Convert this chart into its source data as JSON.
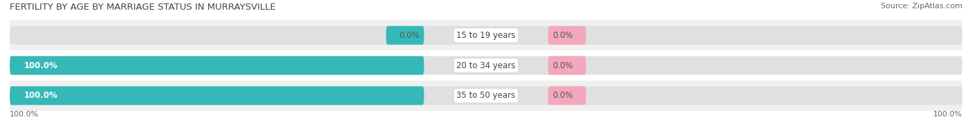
{
  "title": "FERTILITY BY AGE BY MARRIAGE STATUS IN MURRAYSVILLE",
  "source": "Source: ZipAtlas.com",
  "categories": [
    "15 to 19 years",
    "20 to 34 years",
    "35 to 50 years"
  ],
  "married_values": [
    0.0,
    100.0,
    100.0
  ],
  "unmarried_values": [
    0.0,
    0.0,
    0.0
  ],
  "married_color": "#36b8b8",
  "unmarried_color": "#f4a8bc",
  "bar_bg_color": "#e0e0e0",
  "background_color": "#ffffff",
  "title_fontsize": 9.5,
  "source_fontsize": 8,
  "label_fontsize": 8.5,
  "tick_fontsize": 8,
  "legend_fontsize": 9,
  "bar_label_white": "#ffffff",
  "bar_label_dark": "#555555",
  "center_label_color": "#444444",
  "title_color": "#444444",
  "source_color": "#666666",
  "tick_color": "#666666",
  "row_bg_odd": "#f0f0f0",
  "row_bg_even": "#ffffff"
}
